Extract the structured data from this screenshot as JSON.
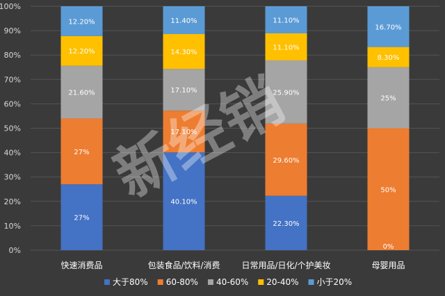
{
  "chart_data": {
    "type": "bar",
    "stacked": true,
    "categories": [
      "快速消费品",
      "包装食品/饮料/消费",
      "日常用品/日化/个护美妆",
      "母婴用品"
    ],
    "series": [
      {
        "name": "大于80%",
        "color": "#4472c4",
        "values": [
          27,
          40.1,
          22.3,
          0
        ],
        "labels": [
          "27%",
          "40.10%",
          "22.30%",
          "0%"
        ]
      },
      {
        "name": "60-80%",
        "color": "#ed7d31",
        "values": [
          27,
          17.1,
          29.6,
          50
        ],
        "labels": [
          "27%",
          "17.10%",
          "29.60%",
          "50%"
        ]
      },
      {
        "name": "40-60%",
        "color": "#a5a5a5",
        "values": [
          21.6,
          17.1,
          25.9,
          25
        ],
        "labels": [
          "21.60%",
          "17.10%",
          "25.90%",
          "25%"
        ]
      },
      {
        "name": "20-40%",
        "color": "#ffc000",
        "values": [
          12.2,
          14.3,
          11.1,
          8.3
        ],
        "labels": [
          "12.20%",
          "14.30%",
          "11.10%",
          "8.30%"
        ]
      },
      {
        "name": "小于20%",
        "color": "#5b9bd5",
        "values": [
          12.2,
          11.4,
          11.1,
          16.7
        ],
        "labels": [
          "12.20%",
          "11.40%",
          "11.10%",
          "16.70%"
        ]
      }
    ],
    "y_ticks": [
      "0%",
      "10%",
      "20%",
      "30%",
      "40%",
      "50%",
      "60%",
      "70%",
      "80%",
      "90%",
      "100%"
    ],
    "ylim": [
      0,
      100
    ],
    "grid": true,
    "legend_position": "bottom"
  },
  "watermark": "新经销",
  "colors": {
    "background": "#3a3a3a",
    "grid": "#555555"
  }
}
